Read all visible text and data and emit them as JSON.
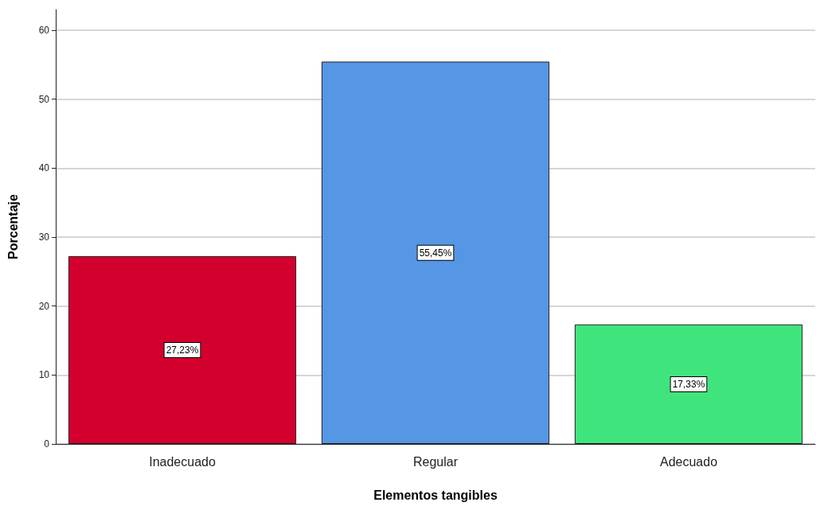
{
  "chart_data": {
    "type": "bar",
    "xlabel": "Elementos tangibles",
    "ylabel": "Porcentaje",
    "categories": [
      "Inadecuado",
      "Regular",
      "Adecuado"
    ],
    "values": [
      27.23,
      55.45,
      17.33
    ],
    "colors": [
      "#d3002d",
      "#5596e5",
      "#3fe57c"
    ],
    "value_labels": [
      "27,23%",
      "55,45%",
      "17,33%"
    ],
    "ylim": [
      0,
      63
    ],
    "yticks": [
      0,
      10,
      20,
      30,
      40,
      50,
      60
    ],
    "grid": "y"
  }
}
